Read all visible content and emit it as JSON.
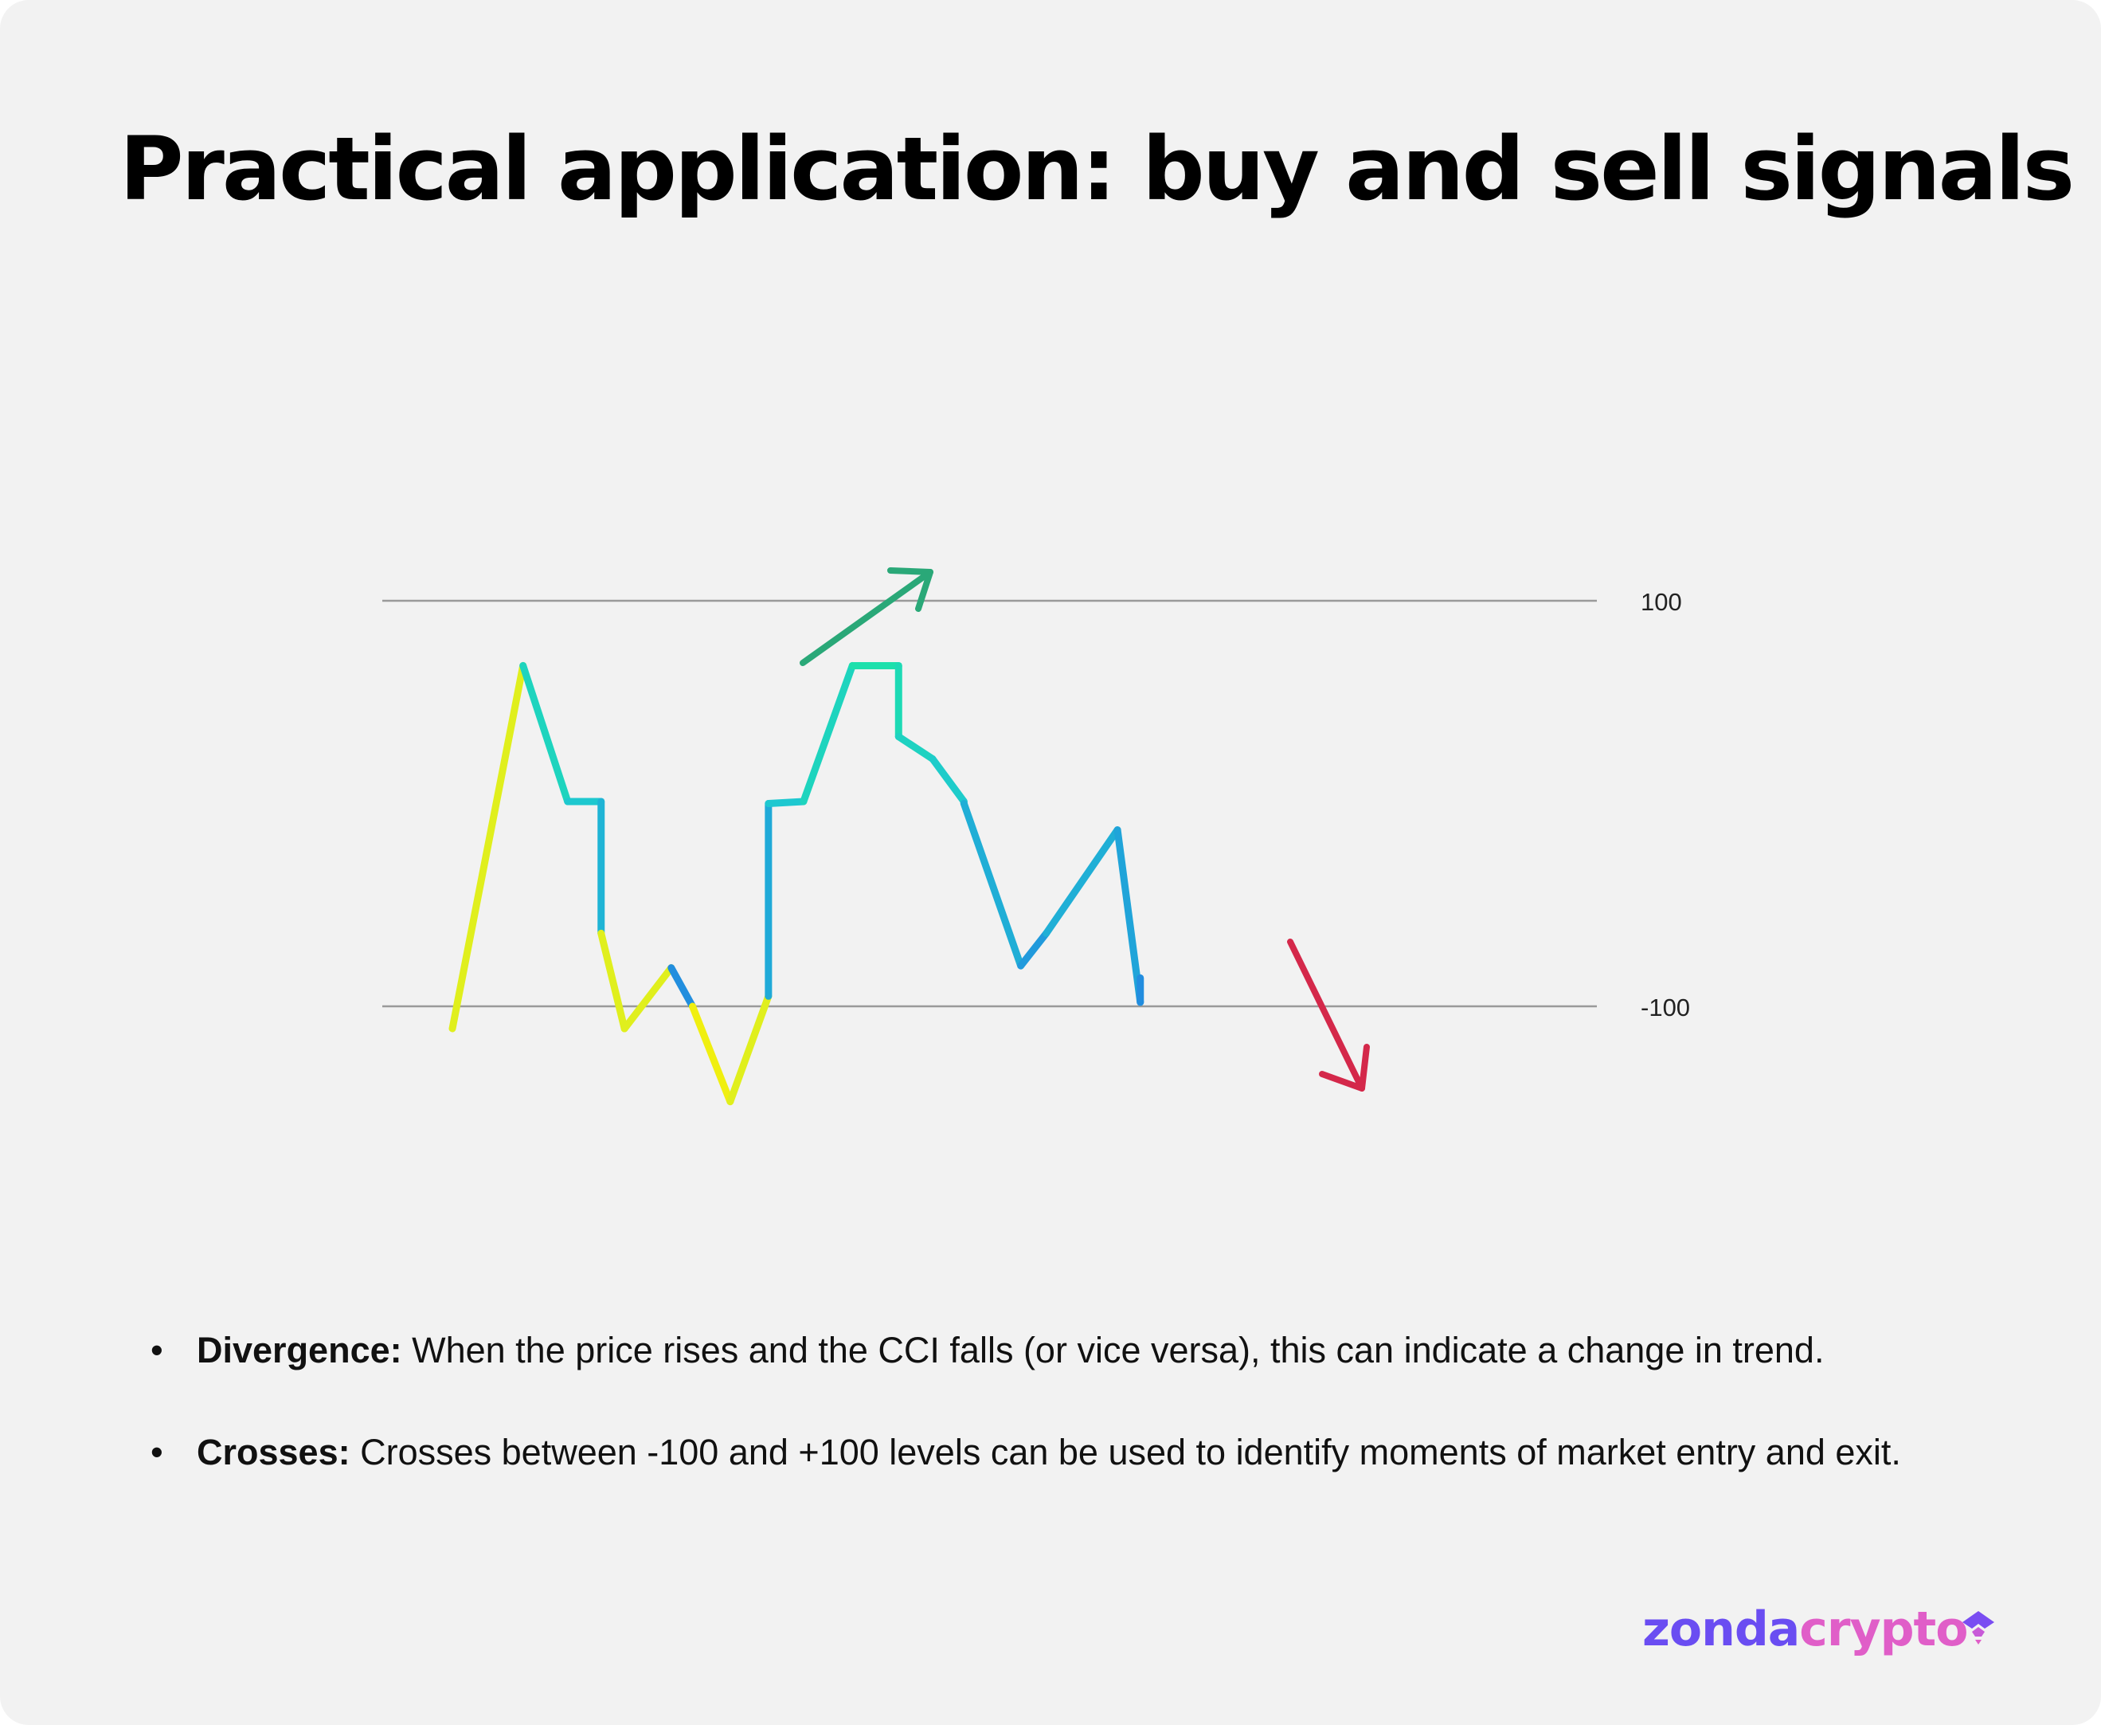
{
  "title": "Practical application: buy and sell signals",
  "chart_data": {
    "type": "line",
    "title": "",
    "xlabel": "",
    "ylabel": "",
    "reference_lines": [
      {
        "value": 100,
        "label": "100"
      },
      {
        "value": -100,
        "label": "-100"
      }
    ],
    "ylim": [
      -150,
      170
    ],
    "series": [
      {
        "x": [
          0,
          1.33,
          2.17,
          2.8,
          2.8,
          3.24,
          4.12,
          4.52,
          5.23,
          5.95,
          5.95,
          6.61,
          7.53,
          8.4,
          8.4,
          9.04,
          9.63,
          9.63,
          10.7,
          11.18,
          12.52,
          12.95,
          12.95
        ],
        "y": [
          -111,
          68,
          1,
          1,
          -64,
          -111,
          -81,
          -100,
          -147,
          -95,
          0,
          1,
          68,
          68,
          33,
          22,
          1,
          0,
          -80,
          -64,
          -13,
          -98,
          -86
        ]
      }
    ],
    "gradient_colors": {
      "green": "#1de8a0",
      "cyan": "#1ec8d0",
      "blue": "#2288e0",
      "yellow": "#f0ef10"
    },
    "annotations": [
      {
        "type": "arrow",
        "direction": "up-right",
        "color": "#2aa878",
        "meaning": "buy"
      },
      {
        "type": "arrow",
        "direction": "down-right",
        "color": "#d4284a",
        "meaning": "sell"
      }
    ]
  },
  "bullets": [
    {
      "term": "Divergence:",
      "text": " When the price rises and the CCI falls (or vice versa), this can indicate a change in trend."
    },
    {
      "term": "Crosses:",
      "text": " Crosses between -100 and +100 levels can be used to identify moments of market entry and exit."
    }
  ],
  "logo": {
    "part1": "zonda",
    "part2": "crypto",
    "icon": "zonda-logo-icon"
  }
}
